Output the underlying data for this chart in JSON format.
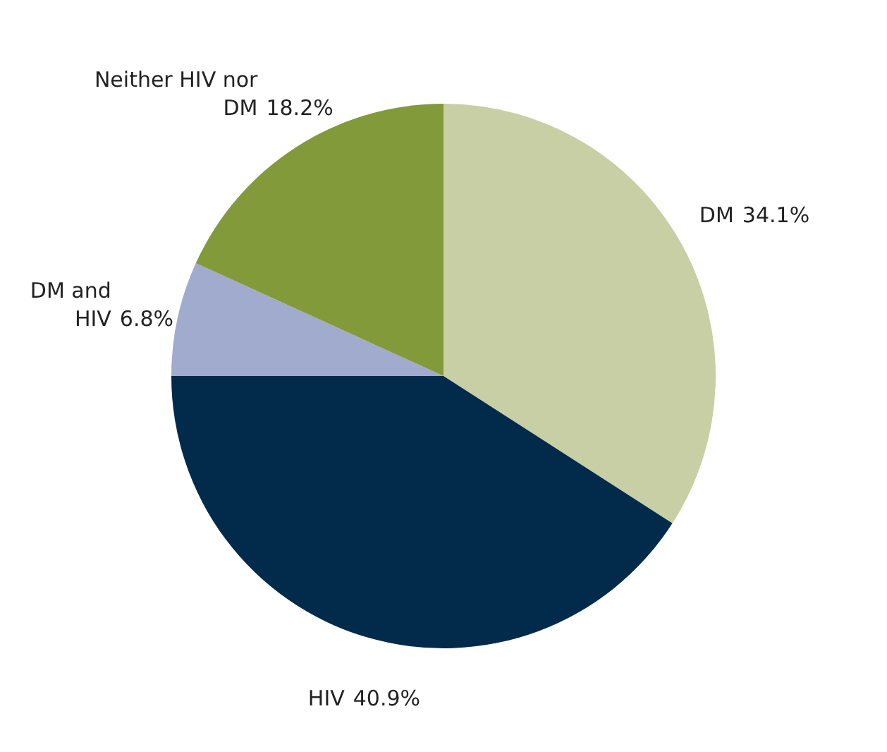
{
  "chart_data": {
    "type": "pie",
    "categories": [
      "DM",
      "HIV",
      "DM and HIV",
      "Neither HIV nor DM"
    ],
    "values": [
      34.1,
      40.9,
      6.8,
      18.2
    ],
    "colors": [
      "#c8cfa4",
      "#022a4b",
      "#a1abcd",
      "#839a3b"
    ],
    "value_labels": [
      "34.1%",
      "40.9%",
      "6.8%",
      "18.2%"
    ]
  }
}
